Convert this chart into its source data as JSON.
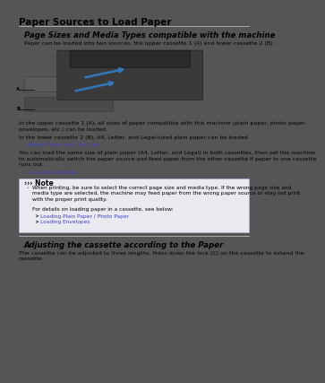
{
  "page_bg": "#ffffff",
  "outer_bg": "#555555",
  "page_title": "Paper Sources to Load Paper",
  "page_title_size": 7.5,
  "section1_title": "Page Sizes and Media Types compatible with the machine",
  "section1_title_size": 6.2,
  "body_size": 4.5,
  "intro_text": "Paper can be loaded into two sources, the upper cassette 1 (A) and lower cassette 2 (B).",
  "body1": "In the upper cassette 1 (A), all sizes of paper compatible with this machine (plain paper, photo paper,\nenvelopes, etc.) can be loaded.",
  "body2": "In the lower cassette 2 (B), A4, Letter, and Legal-sized plain paper can be loaded.",
  "link1": "Media Types You Can Use",
  "body3": "You can load the same size of plain paper (A4, Letter, and Legal) in both cassettes, then set the machine\nto automatically switch the paper source and feed paper from the other cassette if paper in one cassette\nruns out.",
  "link2": "Cassette settings",
  "note_title": "Note",
  "note_body1": "When printing, be sure to select the correct page size and media type. If the wrong page size and\nmedia type are selected, the machine may feed paper from the wrong paper source or may not print\nwith the proper print quality.",
  "note_body2": "For details on loading paper in a cassette, see below:",
  "note_link1": "Loading Plain Paper / Photo Paper",
  "note_link2": "Loading Envelopes",
  "section2_title": "Adjusting the cassette according to the Paper",
  "section2_title_size": 6.2,
  "body4": "The cassette can be adjusted to three lengths. Press down the lock (C) on the cassette to extend the\ncassette.",
  "link_color": "#4040cc",
  "note_bg": "#e8eaf0",
  "note_border": "#aaaacc"
}
